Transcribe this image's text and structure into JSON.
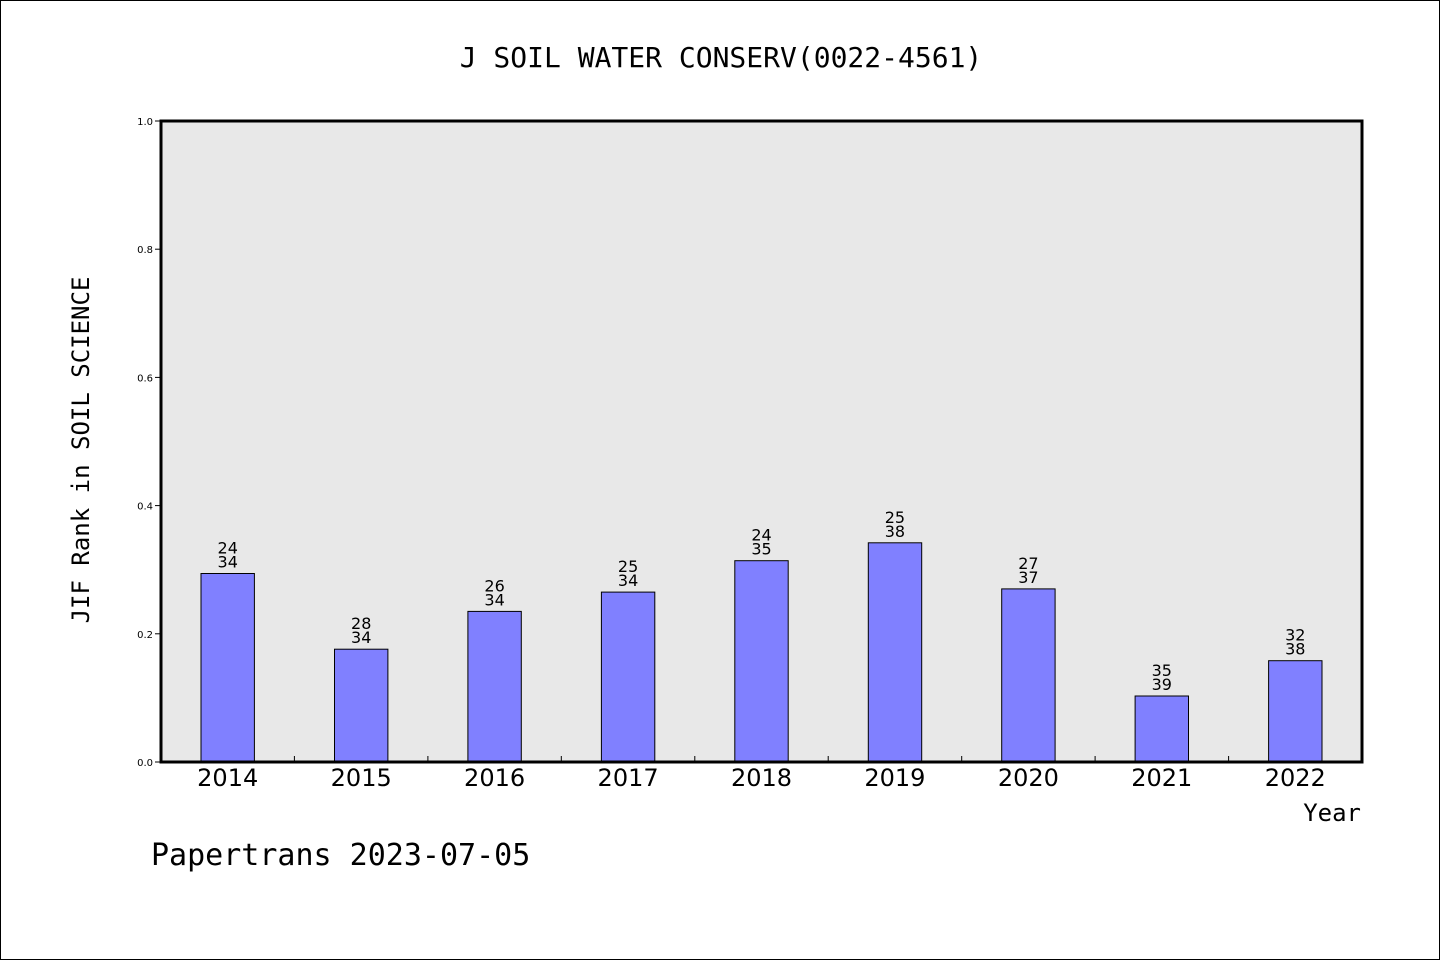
{
  "chart_data": {
    "type": "bar",
    "title": "J SOIL WATER CONSERV(0022-4561)",
    "xlabel": "Year",
    "ylabel": "JIF Rank in SOIL SCIENCE",
    "ylim": [
      0.0,
      1.0
    ],
    "yticks": [
      "0.0",
      "0.2",
      "0.4",
      "0.6",
      "0.8",
      "1.0"
    ],
    "categories": [
      "2014",
      "2015",
      "2016",
      "2017",
      "2018",
      "2019",
      "2020",
      "2021",
      "2022"
    ],
    "values": [
      0.294,
      0.176,
      0.235,
      0.265,
      0.314,
      0.342,
      0.27,
      0.103,
      0.158
    ],
    "labels_top": [
      "24",
      "28",
      "26",
      "25",
      "24",
      "25",
      "27",
      "35",
      "32"
    ],
    "labels_bottom": [
      "34",
      "34",
      "34",
      "34",
      "35",
      "38",
      "37",
      "39",
      "38"
    ],
    "grid": false,
    "colors": {
      "bar": "#8080ff",
      "plot_bg": "#e8e8e8",
      "axis": "#000000"
    }
  },
  "footer": {
    "text": "Papertrans 2023-07-05"
  }
}
